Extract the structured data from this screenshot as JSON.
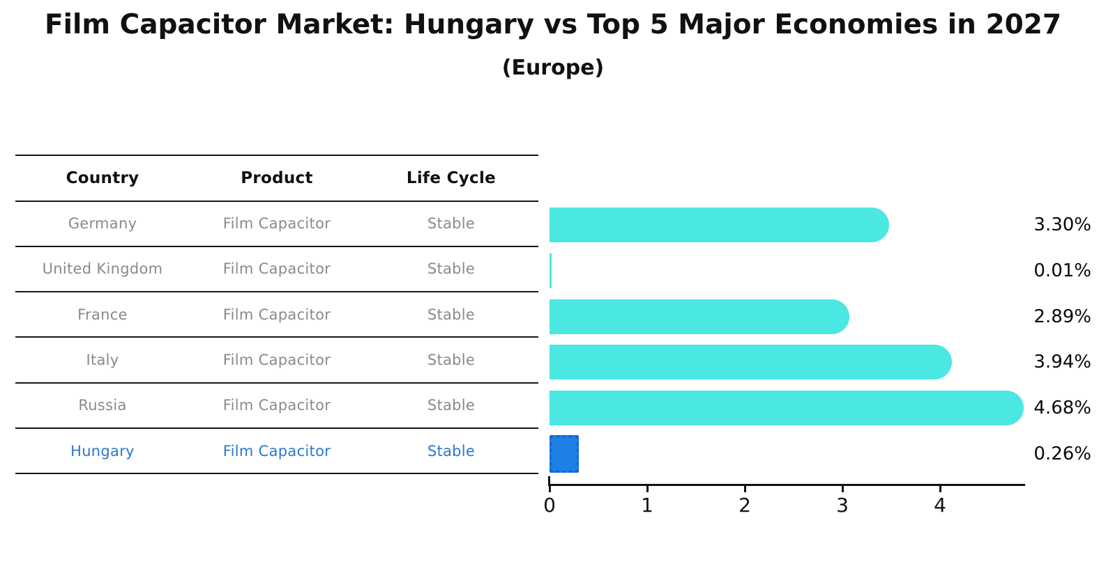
{
  "header": {
    "title": "Film Capacitor Market: Hungary vs Top 5 Major Economies in 2027",
    "subtitle": "(Europe)"
  },
  "table": {
    "headers": [
      "Country",
      "Product",
      "Life Cycle"
    ],
    "rows": [
      {
        "country": "Germany",
        "product": "Film Capacitor",
        "life_cycle": "Stable",
        "highlight": false
      },
      {
        "country": "United Kingdom",
        "product": "Film Capacitor",
        "life_cycle": "Stable",
        "highlight": false
      },
      {
        "country": "France",
        "product": "Film Capacitor",
        "life_cycle": "Stable",
        "highlight": false
      },
      {
        "country": "Italy",
        "product": "Film Capacitor",
        "life_cycle": "Stable",
        "highlight": false
      },
      {
        "country": "Russia",
        "product": "Film Capacitor",
        "life_cycle": "Stable",
        "highlight": true
      }
    ],
    "highlight_row": {
      "country": "Hungary",
      "product": "Film Capacitor",
      "life_cycle": "Stable"
    }
  },
  "chart_data": {
    "type": "bar",
    "orientation": "horizontal",
    "title": "Film Capacitor Market: Hungary vs Top 5 Major Economies in 2027 (Europe)",
    "categories": [
      "Germany",
      "United Kingdom",
      "France",
      "Italy",
      "Russia",
      "Hungary"
    ],
    "values": [
      3.3,
      0.01,
      2.89,
      3.94,
      4.68,
      0.26
    ],
    "value_labels": [
      "3.30%",
      "0.01%",
      "2.89%",
      "3.94%",
      "4.68%",
      "0.26%"
    ],
    "xticks": [
      "0",
      "1",
      "2",
      "3",
      "4"
    ],
    "xlim": [
      0,
      4.87
    ],
    "xlabel": "",
    "ylabel": "",
    "grid": false,
    "legend": null,
    "bar_color": "#4be7e3",
    "highlight_bar_color": "#1e7fe4",
    "highlight_index": 5,
    "highlight_text_color": "#2879ce"
  }
}
